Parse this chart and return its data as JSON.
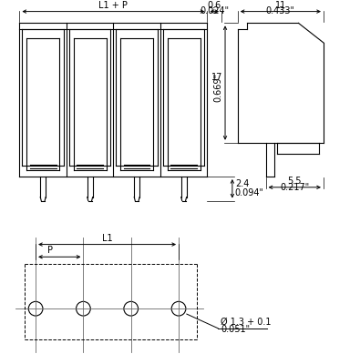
{
  "bg_color": "#ffffff",
  "line_color": "#000000",
  "font_size": 7,
  "dim_labels": {
    "L1_P": "L1 + P",
    "L1": "L1",
    "P": "P",
    "top_width1": "0.6",
    "top_width1_inch": "0.024\"",
    "top_width2": "11",
    "top_width2_inch": "0.433\"",
    "height_main": "17",
    "height_main_inch": "0.669\"",
    "height_small": "2.4",
    "height_small_inch": "0.094\"",
    "bottom_width": "5.5",
    "bottom_width_inch": "0.217\"",
    "hole": "Ø 1.3 + 0.1",
    "hole_inch": "0.051\""
  }
}
